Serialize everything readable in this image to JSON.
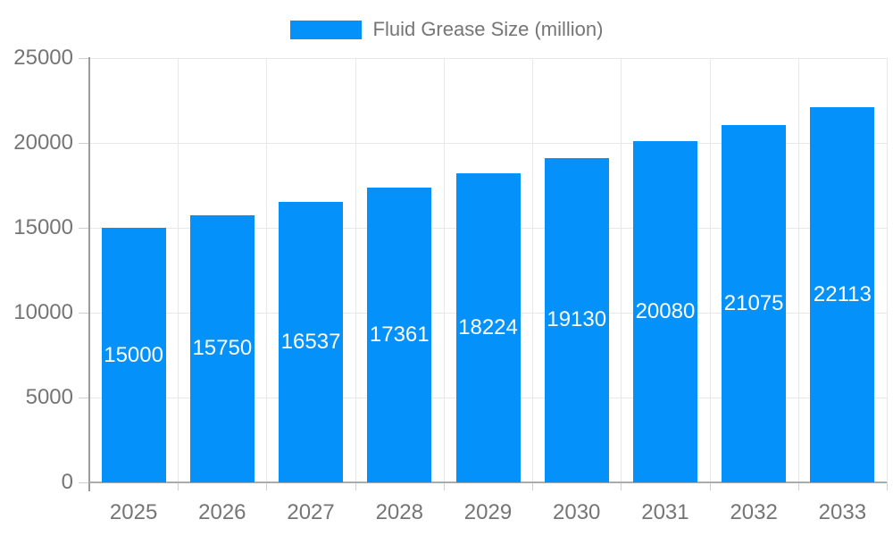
{
  "legend": {
    "label": "Fluid Grease Size (million)"
  },
  "chart_data": {
    "type": "bar",
    "title": "Fluid Grease Size (million)",
    "categories": [
      "2025",
      "2026",
      "2027",
      "2028",
      "2029",
      "2030",
      "2031",
      "2032",
      "2033"
    ],
    "values": [
      15000,
      15750,
      16537,
      17361,
      18224,
      19130,
      20080,
      21075,
      22113
    ],
    "series": [
      {
        "name": "Fluid Grease Size (million)",
        "values": [
          15000,
          15750,
          16537,
          17361,
          18224,
          19130,
          20080,
          21075,
          22113
        ]
      }
    ],
    "xlabel": "",
    "ylabel": "",
    "ylim": [
      0,
      25000
    ],
    "yticks": [
      0,
      5000,
      10000,
      15000,
      20000,
      25000
    ],
    "grid": true,
    "legend_position": "top",
    "bar_color": "#0591fa",
    "bar_label_color": "#ffffff",
    "axis_text_color": "#757575",
    "bar_labels_inside": true
  }
}
